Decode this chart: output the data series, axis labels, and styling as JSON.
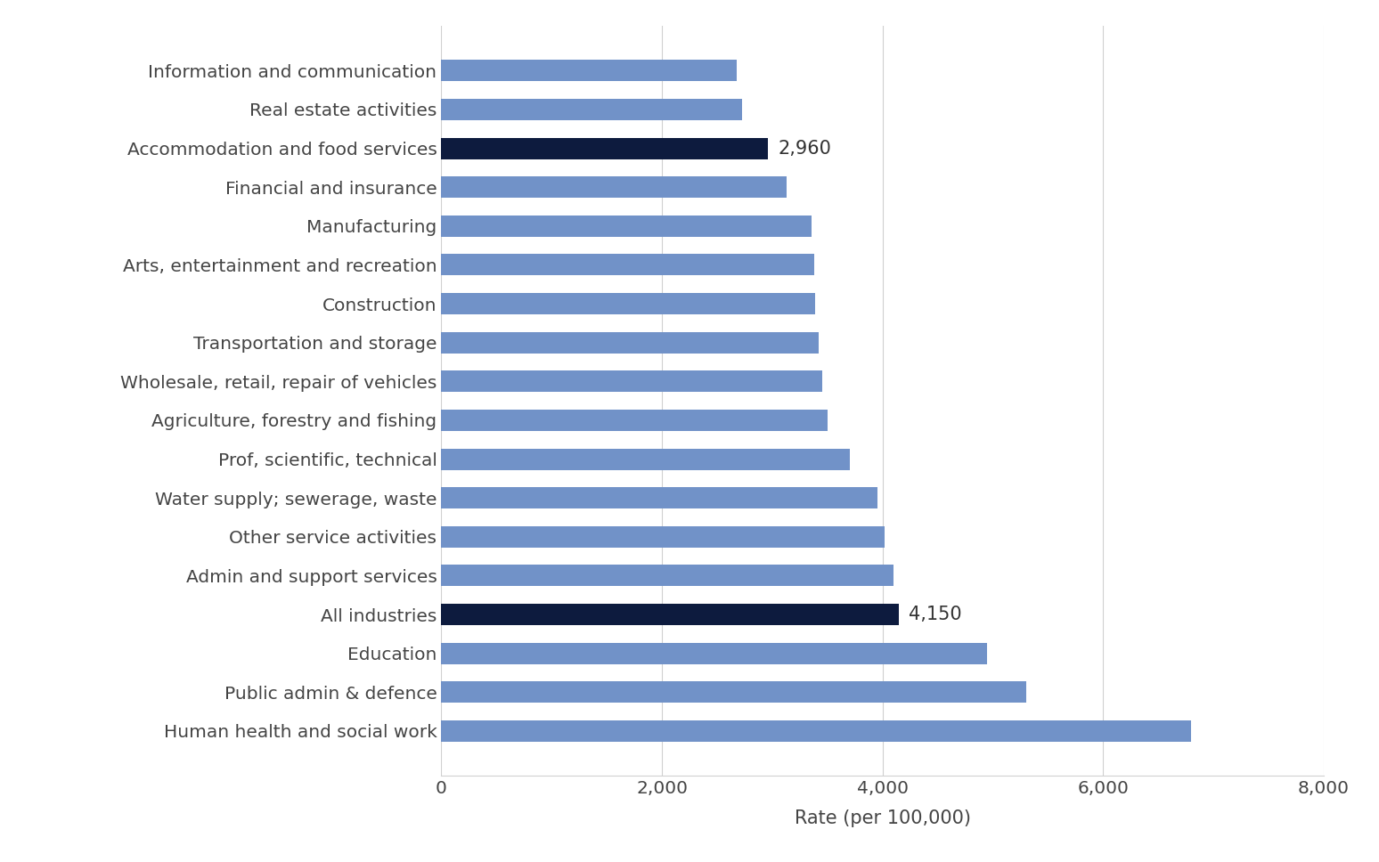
{
  "categories": [
    "Human health and social work",
    "Public admin & defence",
    "Education",
    "All industries",
    "Admin and support services",
    "Other service activities",
    "Water supply; sewerage, waste",
    "Prof, scientific, technical",
    "Agriculture, forestry and fishing",
    "Wholesale, retail, repair of vehicles",
    "Transportation and storage",
    "Construction",
    "Arts, entertainment and recreation",
    "Manufacturing",
    "Financial and insurance",
    "Accommodation and food services",
    "Real estate activities",
    "Information and communication"
  ],
  "values": [
    6800,
    5300,
    4950,
    4150,
    4100,
    4020,
    3950,
    3700,
    3500,
    3450,
    3420,
    3390,
    3380,
    3360,
    3130,
    2960,
    2730,
    2680
  ],
  "bar_colors": [
    "#7192c8",
    "#7192c8",
    "#7192c8",
    "#0d1b3e",
    "#7192c8",
    "#7192c8",
    "#7192c8",
    "#7192c8",
    "#7192c8",
    "#7192c8",
    "#7192c8",
    "#7192c8",
    "#7192c8",
    "#7192c8",
    "#7192c8",
    "#0d1b3e",
    "#7192c8",
    "#7192c8"
  ],
  "annotations": [
    {
      "index": 3,
      "text": "4,150",
      "value": 4150
    },
    {
      "index": 15,
      "text": "2,960",
      "value": 2960
    }
  ],
  "xlabel": "Rate (per 100,000)",
  "xlim": [
    0,
    8000
  ],
  "xticks": [
    0,
    2000,
    4000,
    6000,
    8000
  ],
  "xtick_labels": [
    "0",
    "2,000",
    "4,000",
    "6,000",
    "8,000"
  ],
  "background_color": "#ffffff",
  "grid_color": "#d0d0d0",
  "label_fontsize": 14.5,
  "annotation_fontsize": 15,
  "xlabel_fontsize": 15
}
